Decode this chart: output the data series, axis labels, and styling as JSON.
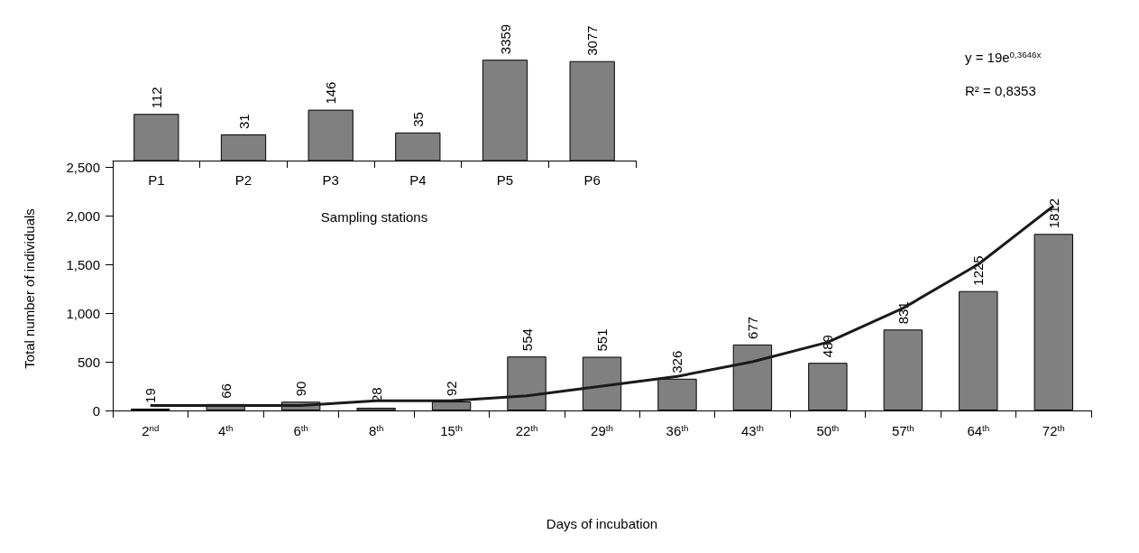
{
  "chart_data": [
    {
      "type": "bar",
      "xlabel": "Sampling stations",
      "categories": [
        "P1",
        "P2",
        "P3",
        "P4",
        "P5",
        "P6"
      ],
      "log": "y",
      "ylim": [
        6,
        3400
      ],
      "tick_labels": "x",
      "data_labels": true,
      "series": [
        {
          "color": "#808080",
          "values": [
            112,
            31,
            146,
            35,
            3359,
            3077
          ]
        }
      ]
    },
    {
      "type": "bar",
      "xlabel": "Days of incubation",
      "ylabel": "Total number of individuals",
      "categories": [
        "2$^{nd}$",
        "4$^{th}$",
        "6$^{th}$",
        "8$^{th}$",
        "15$^{th}$",
        "22$^{th}$",
        "29$^{th}$",
        "36$^{th}$",
        "43$^{th}$",
        "50$^{th}$",
        "57$^{th}$",
        "64$^{th}$",
        "72$^{th}$"
      ],
      "ylim": [
        0,
        2500
      ],
      "yticks": [
        0,
        500,
        {
          "value": 1000,
          "label": "1,000"
        },
        {
          "value": 1500,
          "label": "1,500"
        },
        {
          "value": 2000,
          "label": "2,000"
        },
        {
          "value": 2500,
          "label": "2,500"
        }
      ],
      "marker": "none",
      "annotations": [
        "y = 19e$^{0,3646x}$",
        "R² = 0,8353"
      ],
      "series": [
        {
          "color": "#808080",
          "values": [
            19,
            66,
            90,
            28,
            92,
            554,
            551,
            326,
            677,
            489,
            831,
            1225,
            1812
          ],
          "value_labels": [
            "19",
            "66",
            "90",
            "28",
            "92",
            "554",
            "551",
            "326",
            "677",
            "489",
            "831",
            "1225",
            "1812"
          ]
        },
        {
          "type": "line",
          "color": "#1a1a1a",
          "values": [
            50,
            50,
            50,
            100,
            100,
            150,
            250,
            350,
            500,
            700,
            1050,
            1500,
            2100
          ]
        }
      ]
    }
  ]
}
